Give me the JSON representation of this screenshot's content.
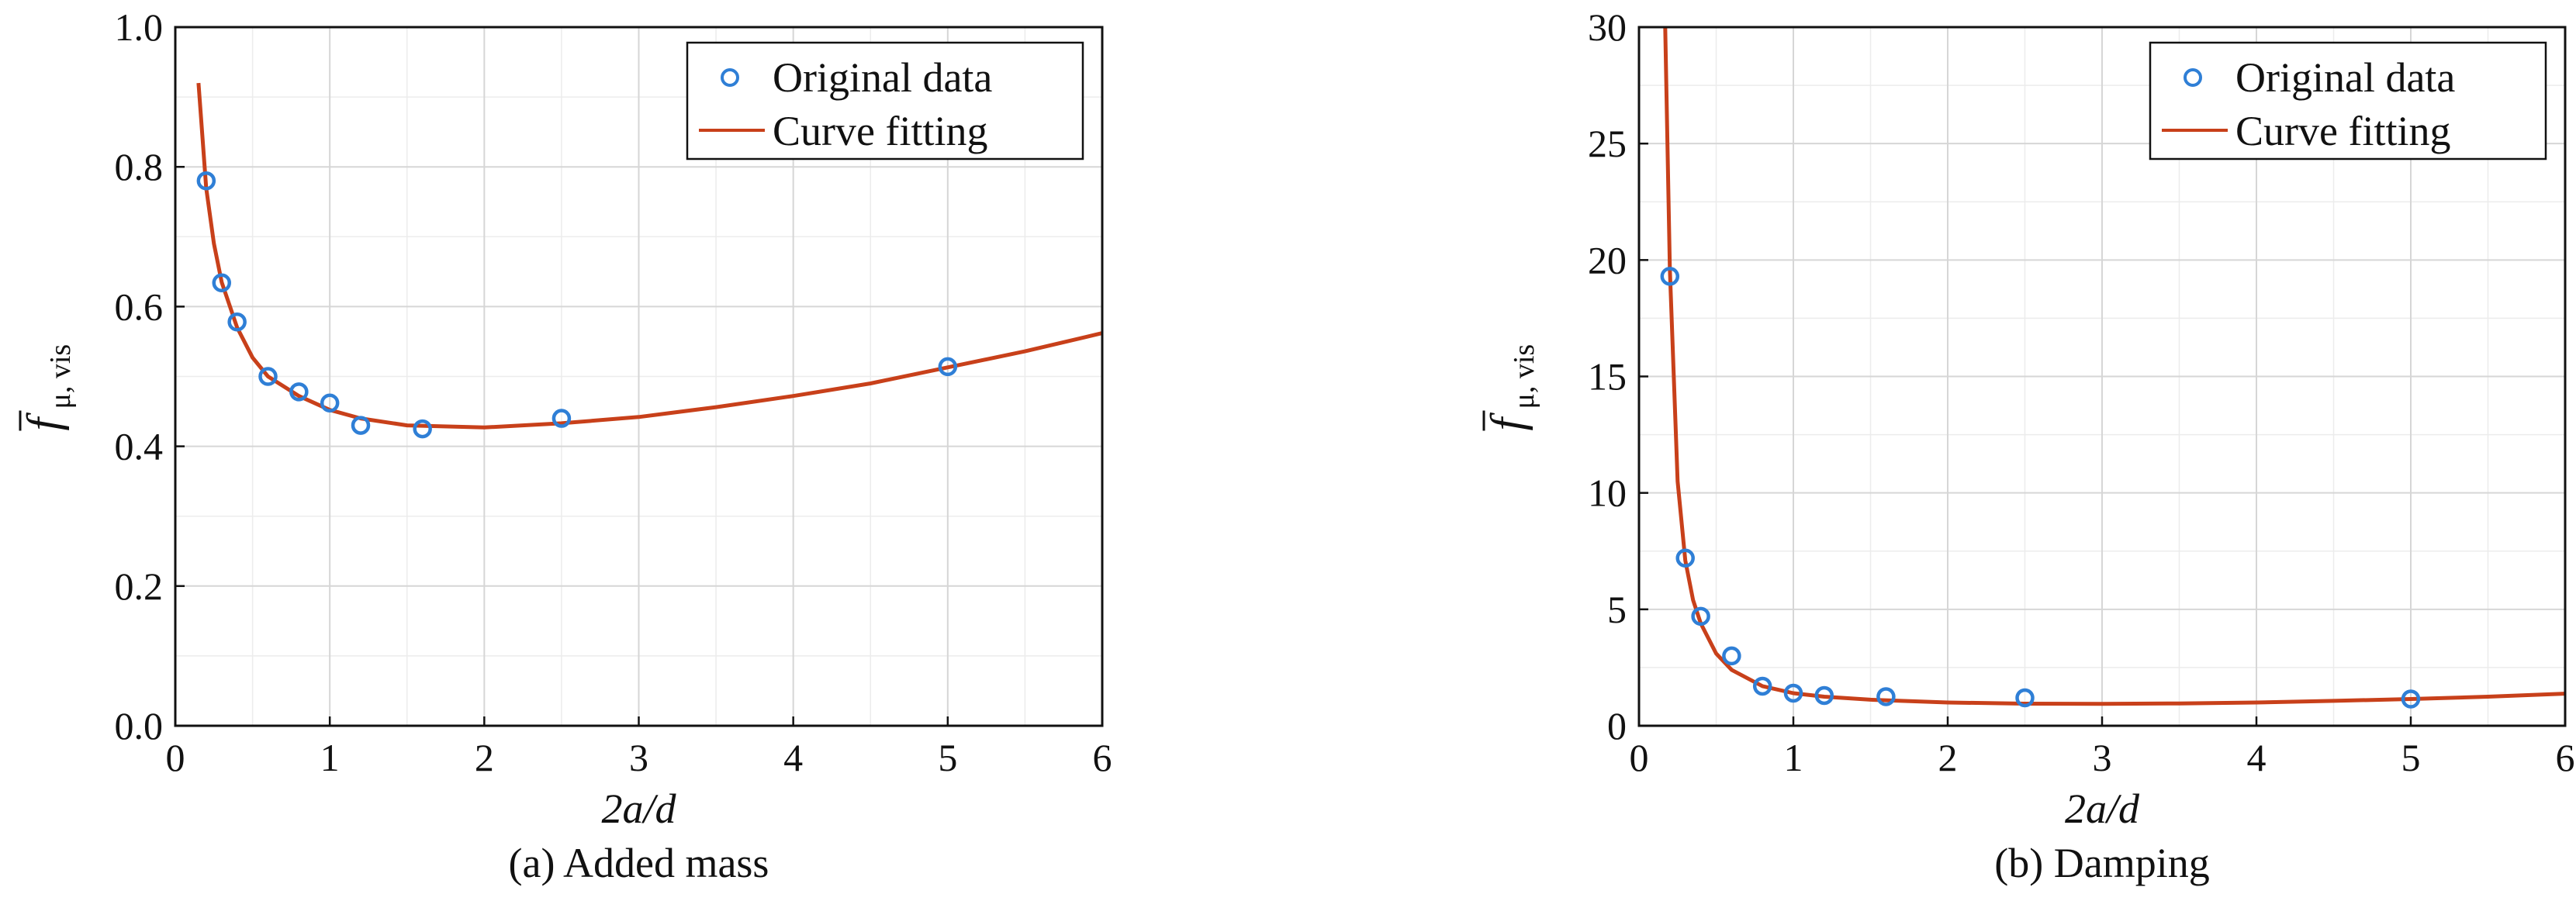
{
  "chart_data": [
    {
      "type": "scatter",
      "caption": "(a) Added mass",
      "xlabel": "2a/d",
      "ylabel": {
        "main": "f",
        "sub": "μ, vis",
        "overbar": true
      },
      "xlim": [
        0,
        6
      ],
      "ylim": [
        0,
        1.0
      ],
      "xticks": [
        "0",
        "1",
        "2",
        "3",
        "4",
        "5",
        "6"
      ],
      "yticks": [
        "0.0",
        "0.2",
        "0.4",
        "0.6",
        "0.8",
        "1.0"
      ],
      "grid": true,
      "legend_position": "top-right",
      "legend": [
        "Original data",
        "Curve fitting"
      ],
      "series": [
        {
          "name": "Original data",
          "kind": "scatter",
          "color": "#2f7fd6",
          "x": [
            0.2,
            0.3,
            0.4,
            0.6,
            0.8,
            1.0,
            1.2,
            1.6,
            2.5,
            5.0
          ],
          "y": [
            0.78,
            0.634,
            0.578,
            0.5,
            0.478,
            0.462,
            0.43,
            0.425,
            0.44,
            0.514
          ]
        },
        {
          "name": "Curve fitting",
          "kind": "line",
          "color": "#c8401a",
          "x": [
            0.15,
            0.2,
            0.25,
            0.3,
            0.4,
            0.5,
            0.6,
            0.8,
            1.0,
            1.2,
            1.5,
            2.0,
            2.5,
            3.0,
            3.5,
            4.0,
            4.5,
            5.0,
            5.5,
            6.0
          ],
          "y": [
            0.92,
            0.77,
            0.69,
            0.635,
            0.57,
            0.527,
            0.5,
            0.472,
            0.452,
            0.44,
            0.43,
            0.427,
            0.433,
            0.442,
            0.456,
            0.472,
            0.49,
            0.513,
            0.536,
            0.562
          ]
        }
      ]
    },
    {
      "type": "scatter",
      "caption": "(b) Damping",
      "xlabel": "2a/d",
      "ylabel": {
        "main": "f",
        "sub": "μ, vis",
        "overbar": true
      },
      "xlim": [
        0,
        6
      ],
      "ylim": [
        0,
        30
      ],
      "xticks": [
        "0",
        "1",
        "2",
        "3",
        "4",
        "5",
        "6"
      ],
      "yticks": [
        "0",
        "5",
        "10",
        "15",
        "20",
        "25",
        "30"
      ],
      "grid": true,
      "legend_position": "top-right",
      "legend": [
        "Original data",
        "Curve fitting"
      ],
      "series": [
        {
          "name": "Original data",
          "kind": "scatter",
          "color": "#2f7fd6",
          "x": [
            0.2,
            0.3,
            0.4,
            0.6,
            0.8,
            1.0,
            1.2,
            1.6,
            2.5,
            5.0
          ],
          "y": [
            19.3,
            7.2,
            4.7,
            3.0,
            1.7,
            1.4,
            1.3,
            1.25,
            1.2,
            1.15
          ]
        },
        {
          "name": "Curve fitting",
          "kind": "line",
          "color": "#c8401a",
          "x": [
            0.17,
            0.2,
            0.25,
            0.3,
            0.35,
            0.4,
            0.5,
            0.6,
            0.8,
            1.0,
            1.2,
            1.5,
            2.0,
            2.5,
            3.0,
            3.5,
            4.0,
            4.5,
            5.0,
            5.5,
            6.0
          ],
          "y": [
            30,
            19.6,
            10.5,
            7.1,
            5.4,
            4.4,
            3.1,
            2.4,
            1.7,
            1.4,
            1.25,
            1.12,
            1.0,
            0.95,
            0.94,
            0.96,
            1.0,
            1.07,
            1.15,
            1.25,
            1.38
          ]
        }
      ]
    }
  ]
}
